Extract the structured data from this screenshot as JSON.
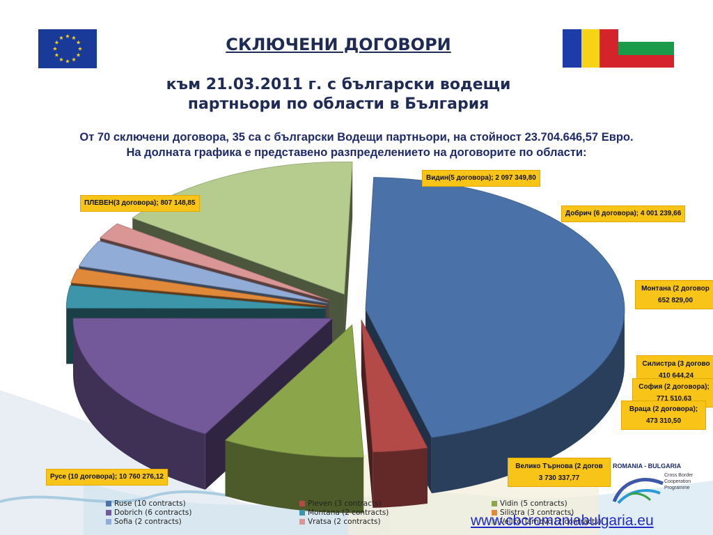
{
  "header": {
    "title": "СКЛЮЧЕНИ ДОГОВОРИ",
    "subtitle_line1": "към 21.03.2011 г. с български водещи",
    "subtitle_line2": "партньори по области в България",
    "intro_line1": "От 70 сключени договора, 35 са с български Водещи партньори, на стойност  23.704.646,57 Евро.",
    "intro_line2": "На долната графика е представено разпределението на договорите по области:"
  },
  "flags": {
    "eu": "eu-flag-icon",
    "romania": "romania-flag-icon",
    "bulgaria": "bulgaria-flag-icon"
  },
  "colors": {
    "ruse": "#4a72a8",
    "pleven": "#b34a48",
    "vidin": "#8aa54a",
    "dobrich": "#73589a",
    "montana": "#3d95aa",
    "silistra": "#e0893a",
    "sofia": "#91acd6",
    "vratsa": "#d99694",
    "veliko": "#b6cc8e",
    "label_bg": "#f7c417",
    "title": "#1f2a55"
  },
  "chart_data": {
    "type": "pie",
    "title": "",
    "slices": [
      {
        "name": "Ruse (10 contracts)",
        "value": 10760276.12,
        "label": "Русе (10 договора); 10 760 276,12"
      },
      {
        "name": "Pleven (3 contracts)",
        "value": 807148.85,
        "label": "ПЛЕВЕН(3 договора); 807 148,85"
      },
      {
        "name": "Vidin (5 contracts)",
        "value": 2097349.8,
        "label": "Видин(5 договора); 2 097 349,80"
      },
      {
        "name": "Dobrich (6 contracts)",
        "value": 4001239.66,
        "label": "Добрич (6 договора); 4 001 239,66"
      },
      {
        "name": "Montana (2 contracts)",
        "value": 652829.0,
        "label_line1": "Монтана (2 договор",
        "label_line2": "652 829,00"
      },
      {
        "name": "Silistra (3 contracts)",
        "value": 410644.24,
        "label_line1": "Силистра (3 догово",
        "label_line2": "410 644,24"
      },
      {
        "name": "Sofia (2 contracts)",
        "value": 771510.63,
        "label_line1": "София (2 договора);",
        "label_line2": "771 510,63"
      },
      {
        "name": "Vratsa (2 contracts)",
        "value": 473310.5,
        "label_line1": "Враца (2 договора);",
        "label_line2": "473 310,50"
      },
      {
        "name": "Veliko Tarnovo (2 contracts)",
        "value": 3730337.77,
        "label_line1": "Велико Търнова (2 догов",
        "label_line2": "3 730 337,77"
      }
    ],
    "legend_position": "bottom",
    "legend": [
      "Ruse (10 contracts)",
      "Pleven (3 contracts)",
      "Vidin (5 contracts)",
      "Dobrich (6 contracts)",
      "Montana (2 contracts)",
      "Silistra (3 contracts)",
      "Sofia (2 contracts)",
      "Vratsa (2 contracts)",
      "Veliko Tarnovo (2 contracts)"
    ]
  },
  "footer": {
    "website": "www.cbcromaniabulgaria.eu",
    "logo_title": "ROMANIA - BULGARIA",
    "logo_sub": "Cross Border Cooperation Programme"
  }
}
